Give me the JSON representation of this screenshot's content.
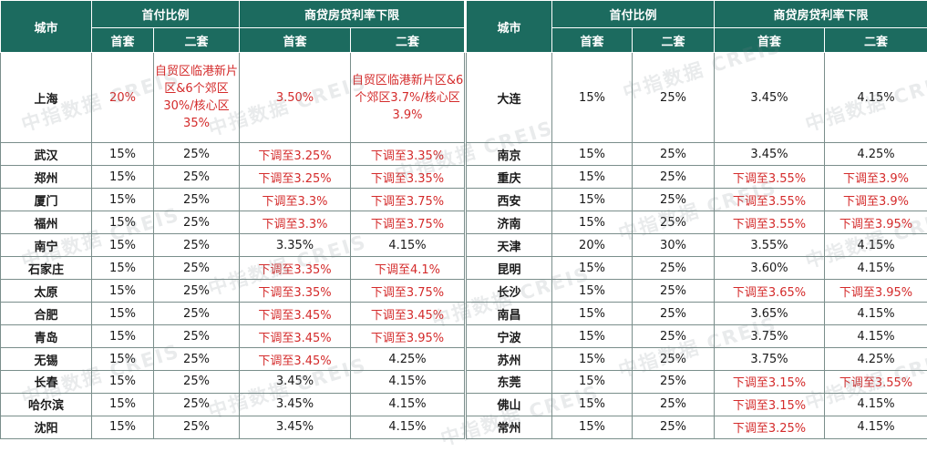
{
  "header": {
    "city": "城市",
    "down_payment": "首付比例",
    "rate_floor": "商贷房贷利率下限",
    "first_home": "首套",
    "second_home": "二套"
  },
  "left_rows": [
    {
      "city": "上海",
      "dp1": "20%",
      "dp2": "自贸区临港新片区&6个郊区30%/核心区35%",
      "r1": "3.50%",
      "r2": "自贸区临港新片区&6个郊区3.7%/核心区3.9%"
    },
    {
      "city": "武汉",
      "dp1": "15%",
      "dp2": "25%",
      "r1": "下调至3.25%",
      "r2": "下调至3.35%"
    },
    {
      "city": "郑州",
      "dp1": "15%",
      "dp2": "25%",
      "r1": "下调至3.25%",
      "r2": "下调至3.35%"
    },
    {
      "city": "厦门",
      "dp1": "15%",
      "dp2": "25%",
      "r1": "下调至3.3%",
      "r2": "下调至3.75%"
    },
    {
      "city": "福州",
      "dp1": "15%",
      "dp2": "25%",
      "r1": "下调至3.3%",
      "r2": "下调至3.75%"
    },
    {
      "city": "南宁",
      "dp1": "15%",
      "dp2": "25%",
      "r1": "3.35%",
      "r2": "4.15%"
    },
    {
      "city": "石家庄",
      "dp1": "15%",
      "dp2": "25%",
      "r1": "下调至3.35%",
      "r2": "下调至4.1%"
    },
    {
      "city": "太原",
      "dp1": "15%",
      "dp2": "25%",
      "r1": "下调至3.35%",
      "r2": "下调至3.75%"
    },
    {
      "city": "合肥",
      "dp1": "15%",
      "dp2": "25%",
      "r1": "下调至3.45%",
      "r2": "下调至3.45%"
    },
    {
      "city": "青岛",
      "dp1": "15%",
      "dp2": "25%",
      "r1": "下调至3.45%",
      "r2": "下调至3.95%"
    },
    {
      "city": "无锡",
      "dp1": "15%",
      "dp2": "25%",
      "r1": "下调至3.45%",
      "r2": "4.25%"
    },
    {
      "city": "长春",
      "dp1": "15%",
      "dp2": "25%",
      "r1": "3.45%",
      "r2": "4.15%"
    },
    {
      "city": "哈尔滨",
      "dp1": "15%",
      "dp2": "25%",
      "r1": "3.45%",
      "r2": "4.15%"
    },
    {
      "city": "沈阳",
      "dp1": "15%",
      "dp2": "25%",
      "r1": "3.45%",
      "r2": "4.15%"
    }
  ],
  "right_rows": [
    {
      "city": "大连",
      "dp1": "15%",
      "dp2": "25%",
      "r1": "3.45%",
      "r2": "4.15%"
    },
    {
      "city": "南京",
      "dp1": "15%",
      "dp2": "25%",
      "r1": "3.45%",
      "r2": "4.25%"
    },
    {
      "city": "重庆",
      "dp1": "15%",
      "dp2": "25%",
      "r1": "下调至3.55%",
      "r2": "下调至3.9%"
    },
    {
      "city": "西安",
      "dp1": "15%",
      "dp2": "25%",
      "r1": "下调至3.55%",
      "r2": "下调至3.9%"
    },
    {
      "city": "济南",
      "dp1": "15%",
      "dp2": "25%",
      "r1": "下调至3.55%",
      "r2": "下调至3.95%"
    },
    {
      "city": "天津",
      "dp1": "20%",
      "dp2": "30%",
      "r1": "3.55%",
      "r2": "4.15%"
    },
    {
      "city": "昆明",
      "dp1": "15%",
      "dp2": "25%",
      "r1": "3.60%",
      "r2": "4.15%"
    },
    {
      "city": "长沙",
      "dp1": "15%",
      "dp2": "25%",
      "r1": "下调至3.65%",
      "r2": "下调至3.95%"
    },
    {
      "city": "南昌",
      "dp1": "15%",
      "dp2": "25%",
      "r1": "3.65%",
      "r2": "4.15%"
    },
    {
      "city": "宁波",
      "dp1": "15%",
      "dp2": "25%",
      "r1": "3.75%",
      "r2": "4.15%"
    },
    {
      "city": "苏州",
      "dp1": "15%",
      "dp2": "25%",
      "r1": "3.75%",
      "r2": "4.25%"
    },
    {
      "city": "东莞",
      "dp1": "15%",
      "dp2": "25%",
      "r1": "下调至3.15%",
      "r2": "下调至3.55%"
    },
    {
      "city": "佛山",
      "dp1": "15%",
      "dp2": "25%",
      "r1": "下调至3.15%",
      "r2": "4.15%"
    },
    {
      "city": "常州",
      "dp1": "15%",
      "dp2": "25%",
      "r1": "下调至3.25%",
      "r2": "4.15%"
    }
  ],
  "watermark": "中指数据 CREIS",
  "colors": {
    "header_bg": "#1c6b5f",
    "highlight_text": "#d42b2b",
    "normal_text": "#1a1a1a"
  }
}
